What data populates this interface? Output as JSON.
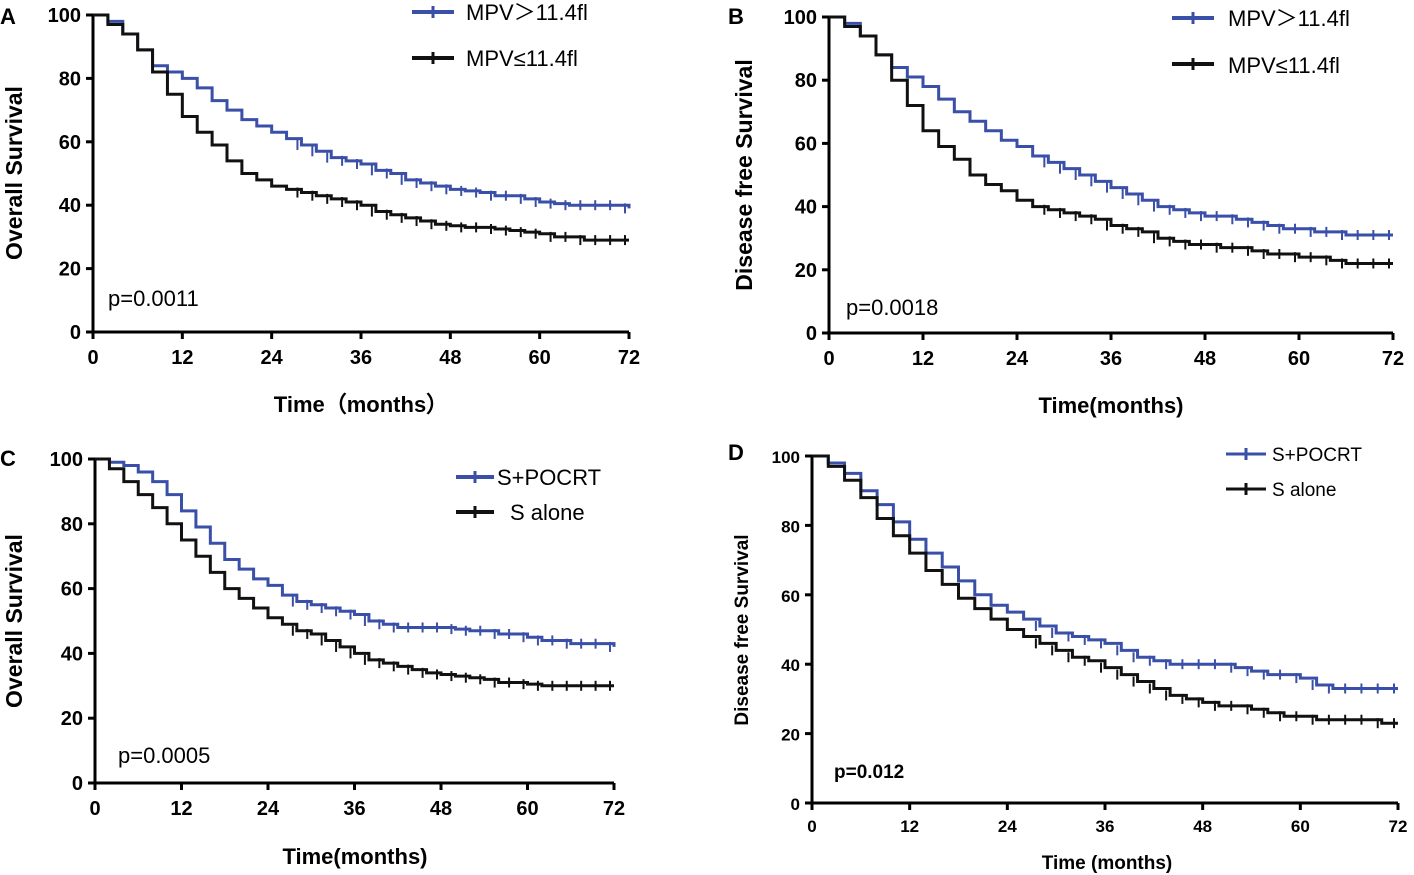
{
  "figure": {
    "colors": {
      "high": "#3a4fa8",
      "low": "#111111",
      "axis": "#000000"
    }
  },
  "chart_data": [
    {
      "panel": "A",
      "type": "line",
      "title": "",
      "xlabel": "Time（months）",
      "ylabel": "Overall Survival",
      "xlim": [
        0,
        72
      ],
      "ylim": [
        0,
        100
      ],
      "xticks": [
        0,
        12,
        24,
        36,
        48,
        60,
        72
      ],
      "yticks": [
        0,
        20,
        40,
        60,
        80,
        100
      ],
      "annotation": "p=0.0011",
      "annotation_bold": false,
      "legend_position": "top-right",
      "series": [
        {
          "name": "MPV＞11.4fl",
          "color": "#3a4fa8",
          "x": [
            0,
            2,
            4,
            6,
            8,
            10,
            12,
            14,
            16,
            18,
            20,
            22,
            24,
            26,
            28,
            30,
            32,
            34,
            36,
            38,
            40,
            42,
            44,
            46,
            48,
            50,
            52,
            54,
            56,
            58,
            60,
            62,
            64,
            66,
            68,
            70,
            72
          ],
          "y": [
            100,
            98,
            94,
            89,
            84,
            82,
            80,
            77,
            73,
            70,
            67,
            65,
            63,
            61,
            59,
            57,
            55,
            54,
            53,
            51,
            50,
            48,
            47,
            46,
            45,
            44.5,
            44,
            43,
            43,
            42,
            41,
            40.5,
            40,
            40,
            40,
            40,
            39
          ]
        },
        {
          "name": "MPV≤11.4fl",
          "color": "#111111",
          "x": [
            0,
            2,
            4,
            6,
            8,
            10,
            12,
            14,
            16,
            18,
            20,
            22,
            24,
            26,
            28,
            30,
            32,
            34,
            36,
            38,
            40,
            42,
            44,
            46,
            48,
            50,
            52,
            54,
            56,
            58,
            60,
            62,
            64,
            66,
            68,
            70,
            72
          ],
          "y": [
            100,
            97,
            94,
            89,
            82,
            75,
            68,
            63,
            59,
            54,
            50,
            48,
            46,
            45,
            44,
            43,
            42,
            41,
            40,
            38,
            37,
            36,
            35,
            34,
            33.5,
            33,
            33,
            32.5,
            32,
            31.5,
            31,
            30,
            30,
            29,
            29,
            29,
            29
          ]
        }
      ]
    },
    {
      "panel": "B",
      "type": "line",
      "title": "",
      "xlabel": "Time(months)",
      "ylabel": "Disease free Survival",
      "xlim": [
        0,
        72
      ],
      "ylim": [
        0,
        100
      ],
      "xticks": [
        0,
        12,
        24,
        36,
        48,
        60,
        72
      ],
      "yticks": [
        0,
        20,
        40,
        60,
        80,
        100
      ],
      "annotation": "p=0.0018",
      "annotation_bold": false,
      "legend_position": "top-right",
      "series": [
        {
          "name": "MPV＞11.4fl",
          "color": "#3a4fa8",
          "x": [
            0,
            2,
            4,
            6,
            8,
            10,
            12,
            14,
            16,
            18,
            20,
            22,
            24,
            26,
            28,
            30,
            32,
            34,
            36,
            38,
            40,
            42,
            44,
            46,
            48,
            50,
            52,
            54,
            56,
            58,
            60,
            62,
            64,
            66,
            68,
            70,
            72
          ],
          "y": [
            100,
            98,
            94,
            88,
            84,
            81,
            78,
            74,
            70,
            67,
            64,
            61,
            59,
            56,
            54,
            52,
            50,
            48,
            46,
            44,
            42,
            40,
            39,
            38,
            37,
            37,
            36,
            35,
            34,
            33,
            33,
            32,
            32,
            31,
            31,
            31,
            31
          ]
        },
        {
          "name": "MPV≤11.4fl",
          "color": "#111111",
          "x": [
            0,
            2,
            4,
            6,
            8,
            10,
            12,
            14,
            16,
            18,
            20,
            22,
            24,
            26,
            28,
            30,
            32,
            34,
            36,
            38,
            40,
            42,
            44,
            46,
            48,
            50,
            52,
            54,
            56,
            58,
            60,
            62,
            64,
            66,
            68,
            70,
            72
          ],
          "y": [
            100,
            97,
            94,
            88,
            80,
            72,
            64,
            59,
            55,
            50,
            47,
            45,
            42,
            40,
            39,
            38,
            37,
            36,
            34,
            33,
            32,
            30,
            29,
            28,
            28,
            27,
            27,
            26,
            25,
            25,
            24,
            24,
            23,
            22,
            22,
            22,
            22
          ]
        }
      ]
    },
    {
      "panel": "C",
      "type": "line",
      "title": "",
      "xlabel": "Time(months)",
      "ylabel": "Overall Survival",
      "xlim": [
        0,
        72
      ],
      "ylim": [
        0,
        100
      ],
      "xticks": [
        0,
        12,
        24,
        36,
        48,
        60,
        72
      ],
      "yticks": [
        0,
        20,
        40,
        60,
        80,
        100
      ],
      "annotation": "p=0.0005",
      "annotation_bold": false,
      "legend_position": "top-right",
      "series": [
        {
          "name": "S+POCRT",
          "color": "#3a4fa8",
          "x": [
            0,
            2,
            4,
            6,
            8,
            10,
            12,
            14,
            16,
            18,
            20,
            22,
            24,
            26,
            28,
            30,
            32,
            34,
            36,
            38,
            40,
            42,
            44,
            46,
            48,
            50,
            52,
            54,
            56,
            58,
            60,
            62,
            64,
            66,
            68,
            70,
            72
          ],
          "y": [
            100,
            99,
            98,
            96,
            93,
            89,
            84,
            79,
            74,
            69,
            66,
            63,
            61,
            58,
            56,
            55,
            54,
            53,
            52,
            50,
            49,
            48,
            48,
            48,
            48,
            47.5,
            47,
            47,
            46,
            46,
            45,
            44,
            44,
            43,
            43,
            43,
            42
          ]
        },
        {
          "name": "S alone",
          "color": "#111111",
          "x": [
            0,
            2,
            4,
            6,
            8,
            10,
            12,
            14,
            16,
            18,
            20,
            22,
            24,
            26,
            28,
            30,
            32,
            34,
            36,
            38,
            40,
            42,
            44,
            46,
            48,
            50,
            52,
            54,
            56,
            58,
            60,
            62,
            64,
            66,
            68,
            70,
            72
          ],
          "y": [
            100,
            97,
            93,
            89,
            85,
            80,
            75,
            70,
            65,
            60,
            57,
            54,
            51,
            49,
            47,
            46,
            44,
            42,
            40,
            38,
            37,
            36,
            35,
            34,
            33.5,
            33,
            32.5,
            32,
            31,
            31,
            30.5,
            30,
            30,
            30,
            30,
            30,
            30
          ]
        }
      ]
    },
    {
      "panel": "D",
      "type": "line",
      "title": "",
      "xlabel": "Time (months)",
      "ylabel": "Disease free Survival",
      "xlim": [
        0,
        72
      ],
      "ylim": [
        0,
        100
      ],
      "xticks": [
        0,
        12,
        24,
        36,
        48,
        60,
        72
      ],
      "yticks": [
        0,
        20,
        40,
        60,
        80,
        100
      ],
      "annotation": "p=0.012",
      "annotation_bold": true,
      "legend_position": "top-right",
      "series": [
        {
          "name": "S+POCRT",
          "color": "#3a4fa8",
          "x": [
            0,
            2,
            4,
            6,
            8,
            10,
            12,
            14,
            16,
            18,
            20,
            22,
            24,
            26,
            28,
            30,
            32,
            34,
            36,
            38,
            40,
            42,
            44,
            46,
            48,
            50,
            52,
            54,
            56,
            58,
            60,
            62,
            64,
            66,
            68,
            70,
            72
          ],
          "y": [
            100,
            98,
            95,
            90,
            86,
            81,
            76,
            72,
            68,
            64,
            60,
            57,
            55,
            53,
            51,
            49,
            48,
            47,
            46,
            44,
            42,
            41,
            40,
            40,
            40,
            40,
            39,
            38,
            37,
            37,
            36,
            34,
            33,
            33,
            33,
            33,
            33
          ]
        },
        {
          "name": "S alone",
          "color": "#111111",
          "x": [
            0,
            2,
            4,
            6,
            8,
            10,
            12,
            14,
            16,
            18,
            20,
            22,
            24,
            26,
            28,
            30,
            32,
            34,
            36,
            38,
            40,
            42,
            44,
            46,
            48,
            50,
            52,
            54,
            56,
            58,
            60,
            62,
            64,
            66,
            68,
            70,
            72
          ],
          "y": [
            100,
            97,
            93,
            88,
            82,
            77,
            72,
            67,
            63,
            59,
            56,
            53,
            50,
            48,
            46,
            44,
            42,
            41,
            39,
            37,
            35,
            33,
            31,
            30,
            29,
            28,
            28,
            27,
            26,
            25,
            25,
            24,
            24,
            24,
            24,
            23,
            23
          ]
        }
      ]
    }
  ]
}
